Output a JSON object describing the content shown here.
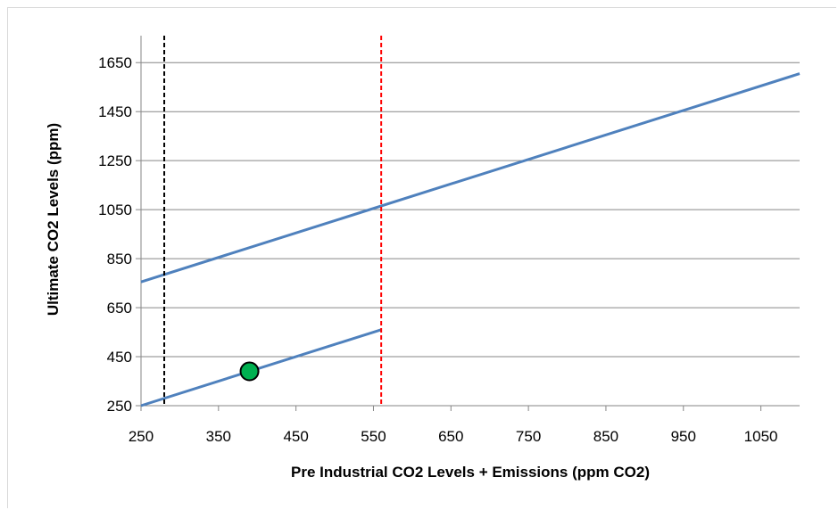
{
  "chart_data": {
    "type": "line",
    "title": "",
    "xlabel": "Pre Industrial  CO2 Levels + Emissions  (ppm CO2)",
    "ylabel": "Ultimate CO2 Levels (ppm)",
    "xlim": [
      250,
      1100
    ],
    "ylim": [
      250,
      1760
    ],
    "x_ticks": [
      250,
      350,
      450,
      550,
      650,
      750,
      850,
      950,
      1050
    ],
    "y_ticks": [
      250,
      450,
      650,
      850,
      1050,
      1250,
      1450,
      1650
    ],
    "grid": "horizontal",
    "series": [
      {
        "x": [
          250,
          1100
        ],
        "y": [
          755,
          1605
        ],
        "color": "#4f81bd"
      },
      {
        "x": [
          250,
          560
        ],
        "y": [
          250,
          560
        ],
        "color": "#4f81bd"
      }
    ],
    "vlines": [
      {
        "x": 280,
        "color": "#000000",
        "style": "dashed"
      },
      {
        "x": 560,
        "color": "#ff0000",
        "style": "dashed"
      }
    ],
    "points": [
      {
        "x": 390,
        "y": 390,
        "color": "#00b050"
      }
    ]
  }
}
